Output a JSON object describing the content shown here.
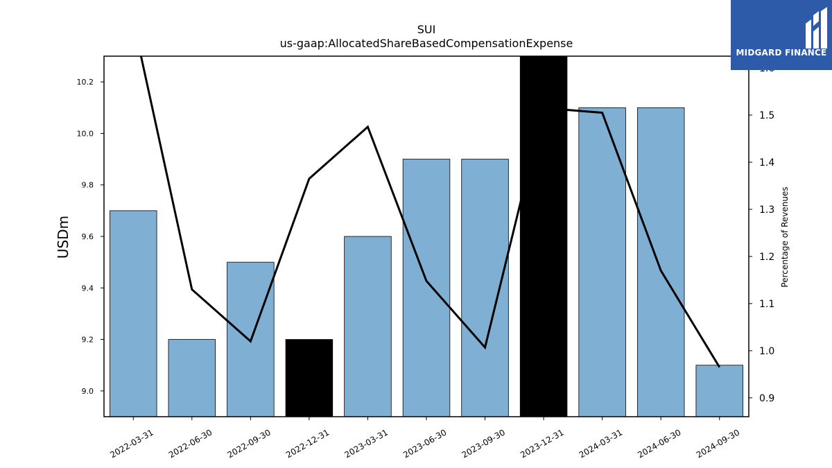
{
  "chart_data": {
    "type": "bar",
    "title": "SUI",
    "subtitle": "us-gaap:AllocatedShareBasedCompensationExpense",
    "ylabel": "USDm",
    "y2label": "Percentage of Revenues",
    "categories": [
      "2022-03-31",
      "2022-06-30",
      "2022-09-30",
      "2022-12-31",
      "2023-03-31",
      "2023-06-30",
      "2023-09-30",
      "2023-12-31",
      "2024-03-31",
      "2024-06-30",
      "2024-09-30"
    ],
    "ylim": [
      8.9,
      10.3
    ],
    "y2lim": [
      0.86,
      1.625
    ],
    "yticks": [
      9.0,
      9.2,
      9.4,
      9.6,
      9.8,
      10.0,
      10.2
    ],
    "y2ticks": [
      0.9,
      1.0,
      1.1,
      1.2,
      1.3,
      1.4,
      1.5,
      1.6
    ],
    "series": [
      {
        "type": "bar",
        "values": [
          9.7,
          9.2,
          9.5,
          9.2,
          9.6,
          9.9,
          9.9,
          10.3,
          10.1,
          10.1,
          9.1
        ],
        "colors": [
          "#7fafd3",
          "#7fafd3",
          "#7fafd3",
          "#000000",
          "#7fafd3",
          "#7fafd3",
          "#7fafd3",
          "#000000",
          "#7fafd3",
          "#7fafd3",
          "#7fafd3"
        ]
      },
      {
        "type": "line",
        "axis": "right",
        "color": "#000000",
        "values": [
          1.7,
          1.13,
          1.02,
          1.365,
          1.475,
          1.148,
          1.007,
          1.515,
          1.505,
          1.17,
          0.965
        ]
      }
    ],
    "grid": false
  },
  "logo": {
    "text": "MIDGARD FINANCE",
    "background": "#2d5baa"
  }
}
